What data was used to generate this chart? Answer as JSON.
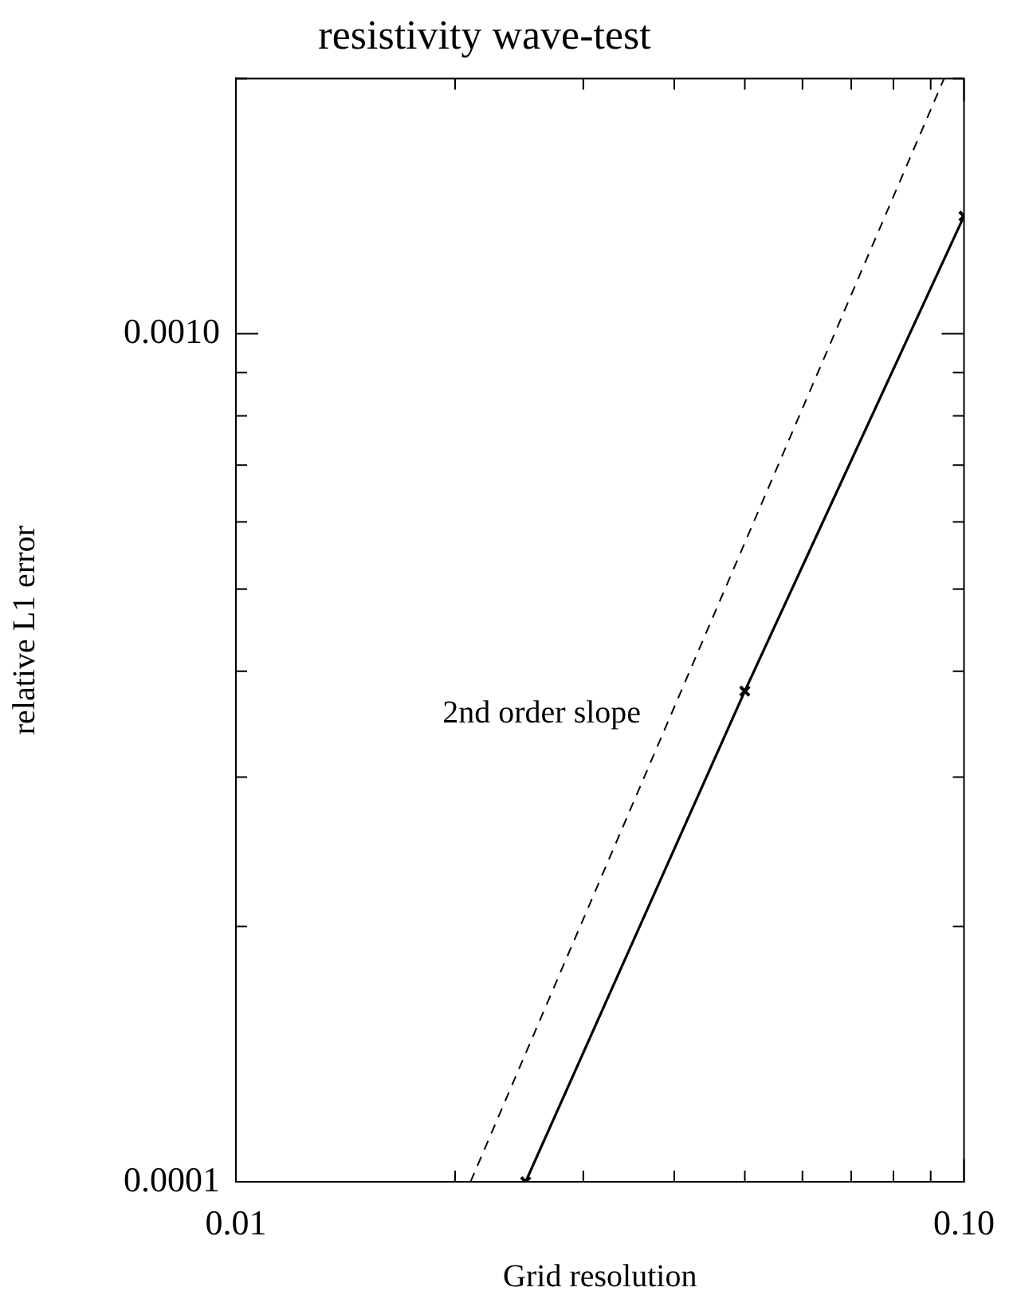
{
  "chart_data": {
    "type": "line",
    "title": "resistivity wave-test",
    "xlabel": "Grid resolution",
    "ylabel": "relative L1 error",
    "log": "xy",
    "xlim": [
      0.01,
      0.1
    ],
    "ylim": [
      0.0001,
      0.002
    ],
    "xticks": [
      0.01,
      {
        "value": 0.02,
        "label": null
      },
      {
        "value": 0.03,
        "label": null
      },
      {
        "value": 0.04,
        "label": null
      },
      {
        "value": 0.05,
        "label": null
      },
      {
        "value": 0.06,
        "label": null
      },
      {
        "value": 0.07,
        "label": null
      },
      {
        "value": 0.08,
        "label": null
      },
      {
        "value": 0.09,
        "label": null
      },
      {
        "value": 0.1,
        "label": "0.10"
      }
    ],
    "yticks": [
      0.0001,
      {
        "value": 0.0002,
        "label": null
      },
      {
        "value": 0.0003,
        "label": null
      },
      {
        "value": 0.0004,
        "label": null
      },
      {
        "value": 0.0005,
        "label": null
      },
      {
        "value": 0.0006,
        "label": null
      },
      {
        "value": 0.0007,
        "label": null
      },
      {
        "value": 0.0008,
        "label": null
      },
      {
        "value": 0.0009,
        "label": null
      },
      {
        "value": 0.001,
        "label": "0.0010"
      },
      {
        "value": 0.002,
        "label": null
      }
    ],
    "series": [
      {
        "color": "#000000",
        "x": [
          0.025,
          0.05,
          0.1
        ],
        "values": [
          0.0001,
          0.000379,
          0.001376
        ],
        "marker": "cross",
        "line_style": "solid"
      },
      {
        "color": "#000000",
        "x": [
          0.021,
          0.0939
        ],
        "values": [
          0.0001,
          0.002
        ],
        "marker": "none",
        "line_style": "dashed"
      }
    ],
    "annotations": [
      "2nd order slope"
    ]
  }
}
